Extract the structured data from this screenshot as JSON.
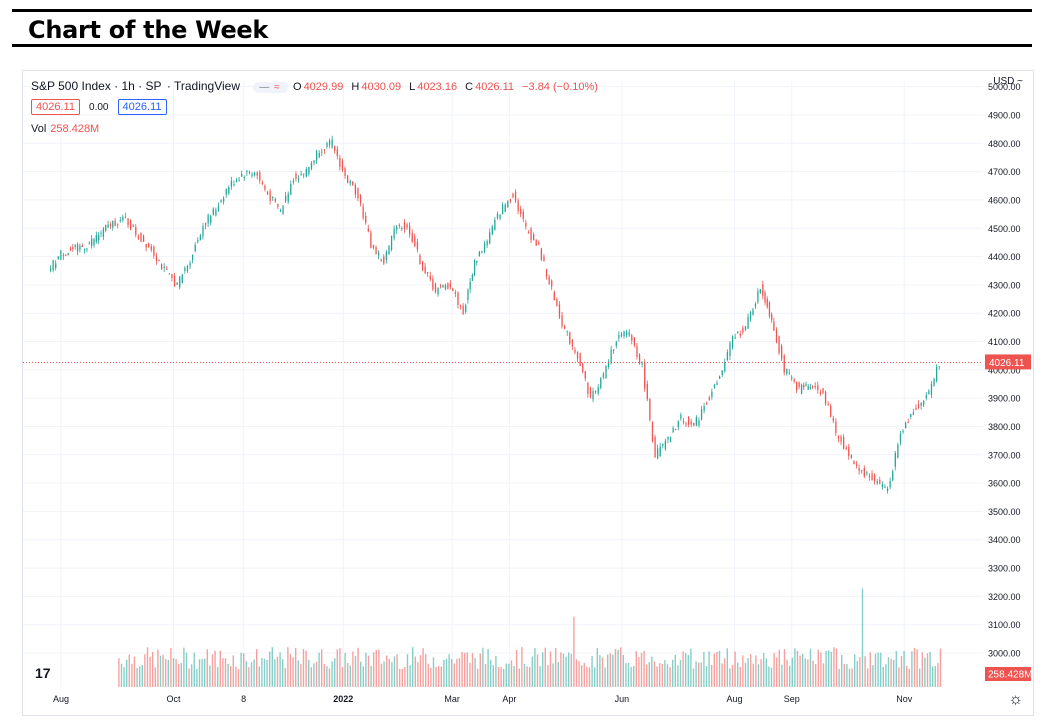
{
  "banner": {
    "title": "Chart of the Week"
  },
  "legend": {
    "symbol": "S&P 500 Index · 1h · SP",
    "source": "· TradingView",
    "ohlc": {
      "o_label": "O",
      "o": "4029.99",
      "h_label": "H",
      "h": "4030.09",
      "l_label": "L",
      "l": "4023.16",
      "c_label": "C",
      "c": "4026.11",
      "change": "−3.84 (−0.10%)"
    },
    "bid": "4026.11",
    "spread": "0.00",
    "ask": "4026.11",
    "vol_label": "Vol",
    "vol_value": "258.428M"
  },
  "currency": "USD ~",
  "colors": {
    "up": "#26a69a",
    "down": "#ef5350",
    "grid": "#f0f3fa",
    "text": "#131722"
  },
  "chart_data": {
    "type": "line",
    "title": "S&P 500 Index · 1h · SP",
    "x_tick_labels": [
      "Aug",
      "Oct",
      "8",
      "2022",
      "Mar",
      "Apr",
      "Jun",
      "Aug",
      "Sep",
      "Nov"
    ],
    "y_ticks": [
      3000,
      3100,
      3200,
      3300,
      3400,
      3500,
      3600,
      3700,
      3800,
      3900,
      4000,
      4100,
      4200,
      4300,
      4400,
      4500,
      4600,
      4700,
      4800,
      4900,
      5000
    ],
    "y_tick_labels": [
      "3000.00",
      "3100.00",
      "3200.00",
      "3300.00",
      "3400.00",
      "3500.00",
      "3600.00",
      "3700.00",
      "3800.00",
      "3900.00",
      "4000.00",
      "4100.00",
      "4200.00",
      "4300.00",
      "4400.00",
      "4500.00",
      "4600.00",
      "4700.00",
      "4800.00",
      "4900.00",
      "5000.00"
    ],
    "ylim": [
      2880,
      5020
    ],
    "last_price": 4026.11,
    "last_price_label": "4026.11",
    "last_volume_label": "258.428M",
    "series": [
      {
        "name": "S&P 500 Index",
        "x": [
          "2021-07-26",
          "2021-08-02",
          "2021-08-16",
          "2021-08-30",
          "2021-09-06",
          "2021-09-13",
          "2021-09-20",
          "2021-09-27",
          "2021-10-04",
          "2021-10-11",
          "2021-10-18",
          "2021-10-25",
          "2021-11-01",
          "2021-11-08",
          "2021-11-15",
          "2021-11-22",
          "2021-11-29",
          "2021-12-06",
          "2021-12-13",
          "2021-12-20",
          "2021-12-27",
          "2022-01-03",
          "2022-01-10",
          "2022-01-17",
          "2022-01-24",
          "2022-01-31",
          "2022-02-07",
          "2022-02-14",
          "2022-02-21",
          "2022-03-01",
          "2022-03-08",
          "2022-03-14",
          "2022-03-21",
          "2022-03-28",
          "2022-04-04",
          "2022-04-11",
          "2022-04-18",
          "2022-04-25",
          "2022-05-02",
          "2022-05-09",
          "2022-05-16",
          "2022-05-23",
          "2022-05-30",
          "2022-06-06",
          "2022-06-13",
          "2022-06-20",
          "2022-06-27",
          "2022-07-04",
          "2022-07-11",
          "2022-07-18",
          "2022-07-25",
          "2022-08-01",
          "2022-08-08",
          "2022-08-16",
          "2022-08-22",
          "2022-08-29",
          "2022-09-06",
          "2022-09-12",
          "2022-09-19",
          "2022-09-26",
          "2022-10-03",
          "2022-10-10",
          "2022-10-17",
          "2022-10-24",
          "2022-10-31",
          "2022-11-07",
          "2022-11-14",
          "2022-11-21"
        ],
        "values": [
          4350,
          4410,
          4440,
          4520,
          4530,
          4470,
          4430,
          4350,
          4300,
          4390,
          4510,
          4570,
          4650,
          4690,
          4700,
          4620,
          4560,
          4680,
          4700,
          4780,
          4800,
          4680,
          4620,
          4440,
          4380,
          4520,
          4490,
          4360,
          4280,
          4300,
          4200,
          4380,
          4460,
          4560,
          4620,
          4500,
          4430,
          4280,
          4140,
          4050,
          3900,
          3980,
          4110,
          4130,
          4010,
          3700,
          3750,
          3830,
          3800,
          3890,
          3970,
          4110,
          4150,
          4290,
          4180,
          4000,
          3930,
          3950,
          3920,
          3780,
          3700,
          3640,
          3610,
          3580,
          3770,
          3860,
          3900,
          4026.11
        ]
      }
    ]
  }
}
